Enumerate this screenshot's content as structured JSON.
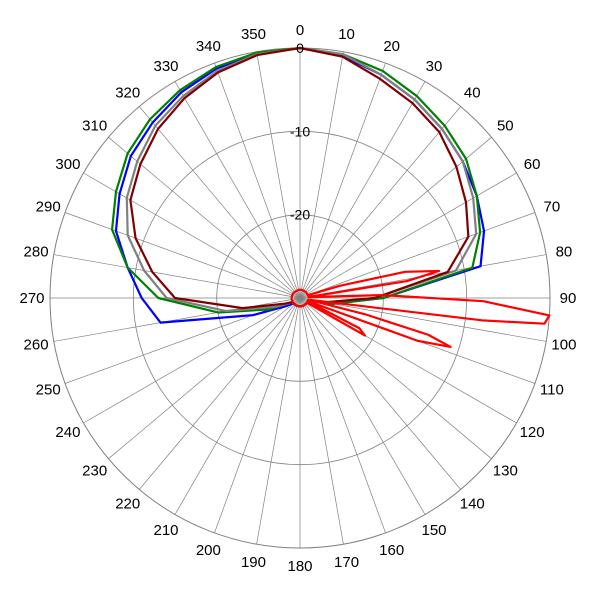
{
  "chart_data": {
    "type": "polar-line",
    "title": "",
    "angle_direction": "clockwise",
    "zero_at": "top",
    "angle_ticks": [
      0,
      10,
      20,
      30,
      40,
      50,
      60,
      70,
      80,
      90,
      100,
      110,
      120,
      130,
      140,
      150,
      160,
      170,
      180,
      190,
      200,
      210,
      220,
      230,
      240,
      250,
      260,
      270,
      280,
      290,
      300,
      310,
      320,
      330,
      340,
      350
    ],
    "angle_tick_labels": [
      "0",
      "10",
      "20",
      "30",
      "40",
      "50",
      "60",
      "70",
      "80",
      "90",
      "100",
      "110",
      "120",
      "130",
      "140",
      "150",
      "160",
      "170",
      "180",
      "190",
      "200",
      "210",
      "220",
      "230",
      "240",
      "250",
      "260",
      "270",
      "280",
      "290",
      "300",
      "310",
      "320",
      "330",
      "340",
      "350"
    ],
    "radial_range_db": [
      -30,
      0
    ],
    "radial_ticks": [
      0,
      -10,
      -20
    ],
    "radial_tick_labels": [
      "0",
      "-10",
      "-20"
    ],
    "series": [
      {
        "color": "#0000ff",
        "points": [
          [
            0,
            0
          ],
          [
            10,
            -0.5
          ],
          [
            20,
            -1.5
          ],
          [
            30,
            -2.5
          ],
          [
            40,
            -3.5
          ],
          [
            50,
            -4.5
          ],
          [
            60,
            -5.5
          ],
          [
            70,
            -6.5
          ],
          [
            80,
            -8
          ],
          [
            90,
            -20
          ],
          [
            100,
            -26
          ],
          [
            110,
            -29
          ],
          [
            120,
            -29
          ],
          [
            130,
            -29
          ],
          [
            140,
            -29
          ],
          [
            150,
            -29
          ],
          [
            160,
            -29
          ],
          [
            170,
            -29
          ],
          [
            180,
            -29
          ],
          [
            190,
            -29
          ],
          [
            200,
            -29
          ],
          [
            210,
            -29
          ],
          [
            220,
            -29
          ],
          [
            230,
            -29
          ],
          [
            240,
            -28
          ],
          [
            250,
            -24
          ],
          [
            260,
            -13
          ],
          [
            270,
            -11
          ],
          [
            280,
            -9
          ],
          [
            290,
            -6.5
          ],
          [
            300,
            -5
          ],
          [
            310,
            -3.5
          ],
          [
            320,
            -2.5
          ],
          [
            330,
            -1.5
          ],
          [
            340,
            -0.7
          ],
          [
            350,
            -0.2
          ],
          [
            360,
            0
          ]
        ]
      },
      {
        "color": "#008000",
        "points": [
          [
            0,
            0
          ],
          [
            10,
            -0.3
          ],
          [
            20,
            -1
          ],
          [
            30,
            -2
          ],
          [
            40,
            -3
          ],
          [
            50,
            -4
          ],
          [
            60,
            -5.5
          ],
          [
            70,
            -7
          ],
          [
            80,
            -9
          ],
          [
            90,
            -20
          ],
          [
            100,
            -26
          ],
          [
            110,
            -29
          ],
          [
            120,
            -29
          ],
          [
            130,
            -29
          ],
          [
            140,
            -29
          ],
          [
            150,
            -29
          ],
          [
            160,
            -29
          ],
          [
            170,
            -29
          ],
          [
            180,
            -29
          ],
          [
            190,
            -29
          ],
          [
            200,
            -29
          ],
          [
            210,
            -29
          ],
          [
            220,
            -29
          ],
          [
            230,
            -29
          ],
          [
            240,
            -29
          ],
          [
            250,
            -26
          ],
          [
            260,
            -20
          ],
          [
            270,
            -13
          ],
          [
            280,
            -9
          ],
          [
            290,
            -6
          ],
          [
            300,
            -4.5
          ],
          [
            310,
            -3
          ],
          [
            320,
            -2
          ],
          [
            330,
            -1.2
          ],
          [
            340,
            -0.5
          ],
          [
            350,
            -0.1
          ],
          [
            360,
            0
          ]
        ]
      },
      {
        "color": "#808080",
        "points": [
          [
            0,
            0
          ],
          [
            10,
            -0.3
          ],
          [
            20,
            -1.5
          ],
          [
            30,
            -2.5
          ],
          [
            40,
            -3.5
          ],
          [
            50,
            -4.5
          ],
          [
            60,
            -6
          ],
          [
            70,
            -7.5
          ],
          [
            80,
            -11
          ],
          [
            90,
            -21
          ],
          [
            100,
            -27
          ],
          [
            110,
            -29
          ],
          [
            120,
            -29
          ],
          [
            130,
            -29
          ],
          [
            140,
            -29
          ],
          [
            150,
            -29
          ],
          [
            160,
            -29
          ],
          [
            170,
            -29
          ],
          [
            180,
            -29
          ],
          [
            190,
            -29
          ],
          [
            200,
            -29
          ],
          [
            210,
            -29
          ],
          [
            220,
            -29
          ],
          [
            230,
            -29
          ],
          [
            240,
            -29
          ],
          [
            250,
            -27
          ],
          [
            260,
            -21
          ],
          [
            270,
            -14
          ],
          [
            280,
            -11
          ],
          [
            290,
            -8
          ],
          [
            300,
            -6
          ],
          [
            310,
            -4.5
          ],
          [
            320,
            -3
          ],
          [
            330,
            -2
          ],
          [
            340,
            -1
          ],
          [
            350,
            -0.3
          ],
          [
            360,
            0
          ]
        ]
      },
      {
        "color": "#800000",
        "points": [
          [
            0,
            0
          ],
          [
            10,
            -0.6
          ],
          [
            20,
            -2
          ],
          [
            30,
            -3
          ],
          [
            40,
            -4
          ],
          [
            50,
            -5.5
          ],
          [
            60,
            -7
          ],
          [
            70,
            -8.5
          ],
          [
            80,
            -12
          ],
          [
            90,
            -21
          ],
          [
            100,
            -27
          ],
          [
            110,
            -29
          ],
          [
            120,
            -29
          ],
          [
            130,
            -29
          ],
          [
            140,
            -29
          ],
          [
            150,
            -29
          ],
          [
            160,
            -29
          ],
          [
            170,
            -29
          ],
          [
            180,
            -29
          ],
          [
            190,
            -29
          ],
          [
            200,
            -29
          ],
          [
            210,
            -29
          ],
          [
            220,
            -29
          ],
          [
            230,
            -29
          ],
          [
            240,
            -29
          ],
          [
            250,
            -28
          ],
          [
            260,
            -23
          ],
          [
            270,
            -15
          ],
          [
            280,
            -12
          ],
          [
            290,
            -9
          ],
          [
            300,
            -6.5
          ],
          [
            310,
            -5
          ],
          [
            320,
            -3.5
          ],
          [
            330,
            -2.3
          ],
          [
            340,
            -1.2
          ],
          [
            350,
            -0.4
          ],
          [
            360,
            0
          ]
        ]
      },
      {
        "color": "#ff0000",
        "points": [
          [
            70,
            -29
          ],
          [
            73,
            -25
          ],
          [
            76,
            -17
          ],
          [
            79,
            -13
          ],
          [
            81,
            -17
          ],
          [
            83,
            -29
          ],
          [
            86,
            -28
          ],
          [
            88,
            -20
          ],
          [
            91,
            -8
          ],
          [
            94,
            0
          ],
          [
            96,
            -0.5
          ],
          [
            97,
            -8
          ],
          [
            99,
            -28
          ],
          [
            102,
            -29
          ],
          [
            104,
            -22
          ],
          [
            106,
            -14
          ],
          [
            108,
            -11
          ],
          [
            110,
            -15
          ],
          [
            112,
            -29
          ],
          [
            114,
            -29
          ],
          [
            117,
            -22
          ],
          [
            120,
            -21
          ],
          [
            124,
            -29
          ],
          [
            128,
            -29
          ],
          [
            135,
            -29
          ],
          [
            150,
            -29
          ],
          [
            160,
            -29
          ],
          [
            168,
            -29
          ],
          [
            172,
            -29
          ],
          [
            176,
            -29
          ],
          [
            180,
            -29
          ],
          [
            200,
            -29
          ],
          [
            240,
            -29
          ],
          [
            262,
            -29
          ],
          [
            266,
            -29
          ],
          [
            268,
            -29
          ],
          [
            270,
            -29
          ],
          [
            275,
            -29
          ],
          [
            280,
            -29
          ],
          [
            290,
            -29
          ],
          [
            310,
            -29
          ],
          [
            350,
            -29
          ],
          [
            10,
            -29
          ],
          [
            40,
            -29
          ],
          [
            60,
            -29
          ],
          [
            66,
            -29
          ],
          [
            68,
            -29
          ],
          [
            70,
            -29
          ]
        ]
      }
    ]
  }
}
